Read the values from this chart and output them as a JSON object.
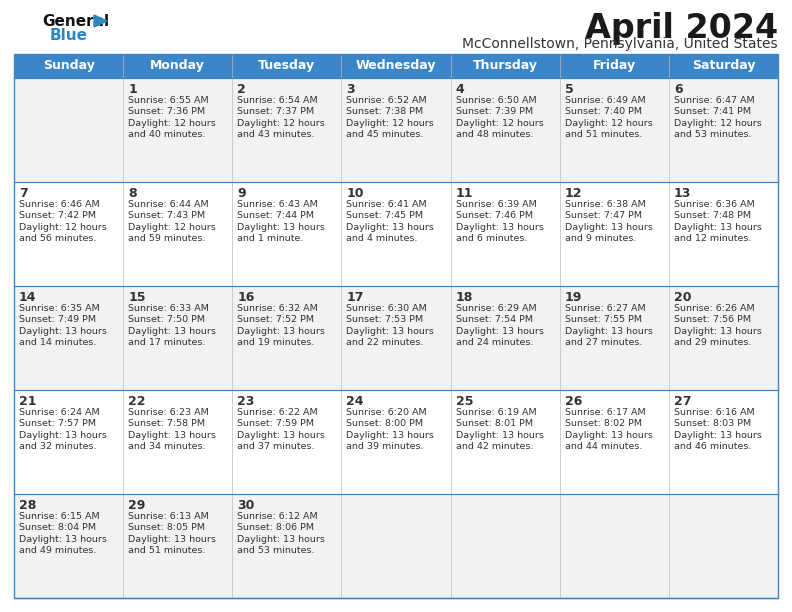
{
  "title": "April 2024",
  "subtitle": "McConnellstown, Pennsylvania, United States",
  "header_bg": "#3A86C8",
  "header_text_color": "#FFFFFF",
  "days_of_week": [
    "Sunday",
    "Monday",
    "Tuesday",
    "Wednesday",
    "Thursday",
    "Friday",
    "Saturday"
  ],
  "cell_bg_light": "#F2F2F2",
  "cell_bg_white": "#FFFFFF",
  "text_color": "#333333",
  "title_color": "#1a1a1a",
  "subtitle_color": "#333333",
  "logo_general_color": "#111111",
  "logo_blue_color": "#2E86C1",
  "border_color": "#3A86C8",
  "calendar": [
    [
      {
        "day": null,
        "sunrise": null,
        "sunset": null,
        "daylight": null
      },
      {
        "day": 1,
        "sunrise": "6:55 AM",
        "sunset": "7:36 PM",
        "daylight": "12 hours and 40 minutes."
      },
      {
        "day": 2,
        "sunrise": "6:54 AM",
        "sunset": "7:37 PM",
        "daylight": "12 hours and 43 minutes."
      },
      {
        "day": 3,
        "sunrise": "6:52 AM",
        "sunset": "7:38 PM",
        "daylight": "12 hours and 45 minutes."
      },
      {
        "day": 4,
        "sunrise": "6:50 AM",
        "sunset": "7:39 PM",
        "daylight": "12 hours and 48 minutes."
      },
      {
        "day": 5,
        "sunrise": "6:49 AM",
        "sunset": "7:40 PM",
        "daylight": "12 hours and 51 minutes."
      },
      {
        "day": 6,
        "sunrise": "6:47 AM",
        "sunset": "7:41 PM",
        "daylight": "12 hours and 53 minutes."
      }
    ],
    [
      {
        "day": 7,
        "sunrise": "6:46 AM",
        "sunset": "7:42 PM",
        "daylight": "12 hours and 56 minutes."
      },
      {
        "day": 8,
        "sunrise": "6:44 AM",
        "sunset": "7:43 PM",
        "daylight": "12 hours and 59 minutes."
      },
      {
        "day": 9,
        "sunrise": "6:43 AM",
        "sunset": "7:44 PM",
        "daylight": "13 hours and 1 minute."
      },
      {
        "day": 10,
        "sunrise": "6:41 AM",
        "sunset": "7:45 PM",
        "daylight": "13 hours and 4 minutes."
      },
      {
        "day": 11,
        "sunrise": "6:39 AM",
        "sunset": "7:46 PM",
        "daylight": "13 hours and 6 minutes."
      },
      {
        "day": 12,
        "sunrise": "6:38 AM",
        "sunset": "7:47 PM",
        "daylight": "13 hours and 9 minutes."
      },
      {
        "day": 13,
        "sunrise": "6:36 AM",
        "sunset": "7:48 PM",
        "daylight": "13 hours and 12 minutes."
      }
    ],
    [
      {
        "day": 14,
        "sunrise": "6:35 AM",
        "sunset": "7:49 PM",
        "daylight": "13 hours and 14 minutes."
      },
      {
        "day": 15,
        "sunrise": "6:33 AM",
        "sunset": "7:50 PM",
        "daylight": "13 hours and 17 minutes."
      },
      {
        "day": 16,
        "sunrise": "6:32 AM",
        "sunset": "7:52 PM",
        "daylight": "13 hours and 19 minutes."
      },
      {
        "day": 17,
        "sunrise": "6:30 AM",
        "sunset": "7:53 PM",
        "daylight": "13 hours and 22 minutes."
      },
      {
        "day": 18,
        "sunrise": "6:29 AM",
        "sunset": "7:54 PM",
        "daylight": "13 hours and 24 minutes."
      },
      {
        "day": 19,
        "sunrise": "6:27 AM",
        "sunset": "7:55 PM",
        "daylight": "13 hours and 27 minutes."
      },
      {
        "day": 20,
        "sunrise": "6:26 AM",
        "sunset": "7:56 PM",
        "daylight": "13 hours and 29 minutes."
      }
    ],
    [
      {
        "day": 21,
        "sunrise": "6:24 AM",
        "sunset": "7:57 PM",
        "daylight": "13 hours and 32 minutes."
      },
      {
        "day": 22,
        "sunrise": "6:23 AM",
        "sunset": "7:58 PM",
        "daylight": "13 hours and 34 minutes."
      },
      {
        "day": 23,
        "sunrise": "6:22 AM",
        "sunset": "7:59 PM",
        "daylight": "13 hours and 37 minutes."
      },
      {
        "day": 24,
        "sunrise": "6:20 AM",
        "sunset": "8:00 PM",
        "daylight": "13 hours and 39 minutes."
      },
      {
        "day": 25,
        "sunrise": "6:19 AM",
        "sunset": "8:01 PM",
        "daylight": "13 hours and 42 minutes."
      },
      {
        "day": 26,
        "sunrise": "6:17 AM",
        "sunset": "8:02 PM",
        "daylight": "13 hours and 44 minutes."
      },
      {
        "day": 27,
        "sunrise": "6:16 AM",
        "sunset": "8:03 PM",
        "daylight": "13 hours and 46 minutes."
      }
    ],
    [
      {
        "day": 28,
        "sunrise": "6:15 AM",
        "sunset": "8:04 PM",
        "daylight": "13 hours and 49 minutes."
      },
      {
        "day": 29,
        "sunrise": "6:13 AM",
        "sunset": "8:05 PM",
        "daylight": "13 hours and 51 minutes."
      },
      {
        "day": 30,
        "sunrise": "6:12 AM",
        "sunset": "8:06 PM",
        "daylight": "13 hours and 53 minutes."
      },
      {
        "day": null,
        "sunrise": null,
        "sunset": null,
        "daylight": null
      },
      {
        "day": null,
        "sunrise": null,
        "sunset": null,
        "daylight": null
      },
      {
        "day": null,
        "sunrise": null,
        "sunset": null,
        "daylight": null
      },
      {
        "day": null,
        "sunrise": null,
        "sunset": null,
        "daylight": null
      }
    ]
  ]
}
